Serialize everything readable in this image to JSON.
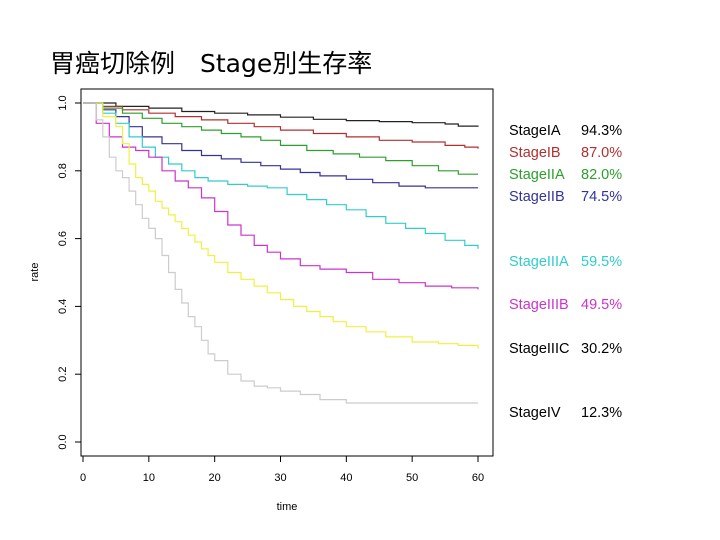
{
  "slide": {
    "title": "胃癌切除例　Stage別生存率"
  },
  "chart_data": {
    "type": "line",
    "title": "胃癌切除例　Stage別生存率",
    "xlabel": "time",
    "ylabel": "rate",
    "xlim": [
      0,
      60
    ],
    "ylim": [
      0.0,
      1.0
    ],
    "xticks": [
      "0",
      "10",
      "20",
      "30",
      "40",
      "50",
      "60"
    ],
    "yticks": [
      "0.0",
      "0.2",
      "0.4",
      "0.6",
      "0.8",
      "1.0"
    ],
    "grid": false,
    "legend_position": "right",
    "series": [
      {
        "name": "StageIA",
        "pct": "94.3%",
        "color": "#222222",
        "x": [
          0,
          5,
          10,
          15,
          20,
          25,
          30,
          35,
          40,
          45,
          50,
          55,
          57,
          60
        ],
        "y": [
          1.0,
          0.99,
          0.985,
          0.975,
          0.97,
          0.965,
          0.958,
          0.952,
          0.948,
          0.945,
          0.942,
          0.938,
          0.932,
          0.93
        ]
      },
      {
        "name": "StageIB",
        "pct": "87.0%",
        "color": "#b03030",
        "x": [
          0,
          3,
          6,
          10,
          14,
          18,
          22,
          26,
          30,
          35,
          40,
          45,
          50,
          55,
          58,
          60
        ],
        "y": [
          1.0,
          0.99,
          0.98,
          0.97,
          0.96,
          0.95,
          0.94,
          0.93,
          0.92,
          0.91,
          0.9,
          0.89,
          0.885,
          0.875,
          0.87,
          0.865
        ]
      },
      {
        "name": "StageIIA",
        "pct": "82.0%",
        "color": "#2ca02c",
        "x": [
          0,
          3,
          6,
          9,
          12,
          15,
          18,
          21,
          24,
          27,
          30,
          34,
          38,
          42,
          46,
          50,
          54,
          57,
          60
        ],
        "y": [
          1.0,
          0.985,
          0.97,
          0.955,
          0.94,
          0.93,
          0.92,
          0.91,
          0.9,
          0.89,
          0.875,
          0.86,
          0.85,
          0.84,
          0.83,
          0.815,
          0.8,
          0.79,
          0.79
        ]
      },
      {
        "name": "StageIIB",
        "pct": "74.5%",
        "color": "#333399",
        "x": [
          0,
          3,
          5,
          7,
          9,
          12,
          15,
          18,
          21,
          24,
          27,
          30,
          33,
          36,
          40,
          44,
          48,
          52,
          56,
          60
        ],
        "y": [
          1.0,
          0.98,
          0.96,
          0.93,
          0.9,
          0.88,
          0.86,
          0.845,
          0.835,
          0.825,
          0.815,
          0.805,
          0.795,
          0.785,
          0.775,
          0.765,
          0.755,
          0.75,
          0.75,
          0.75
        ]
      },
      {
        "name": "StageIIIA",
        "pct": "59.5%",
        "color": "#33cccc",
        "x": [
          0,
          3,
          5,
          7,
          9,
          11,
          13,
          15,
          17,
          19,
          22,
          25,
          28,
          31,
          34,
          37,
          40,
          43,
          46,
          49,
          52,
          55,
          58,
          60
        ],
        "y": [
          1.0,
          0.97,
          0.94,
          0.9,
          0.87,
          0.84,
          0.82,
          0.8,
          0.78,
          0.77,
          0.76,
          0.755,
          0.75,
          0.73,
          0.715,
          0.7,
          0.685,
          0.665,
          0.645,
          0.63,
          0.615,
          0.595,
          0.58,
          0.57
        ]
      },
      {
        "name": "StageIIIB",
        "pct": "49.5%",
        "color": "#cc33cc",
        "x": [
          0,
          2,
          4,
          6,
          8,
          10,
          12,
          14,
          16,
          18,
          20,
          22,
          24,
          26,
          28,
          30,
          33,
          36,
          40,
          44,
          48,
          52,
          56,
          60
        ],
        "y": [
          1.0,
          0.94,
          0.9,
          0.87,
          0.86,
          0.84,
          0.8,
          0.77,
          0.75,
          0.72,
          0.68,
          0.64,
          0.61,
          0.58,
          0.56,
          0.54,
          0.52,
          0.51,
          0.5,
          0.48,
          0.47,
          0.46,
          0.455,
          0.45
        ]
      },
      {
        "name": "StageIIIC",
        "pct": "30.2%",
        "color": "#f0f040",
        "x": [
          0,
          3,
          5,
          6,
          7,
          8,
          9,
          10,
          11,
          12,
          13,
          14,
          15,
          16,
          17,
          18,
          19,
          20,
          22,
          24,
          26,
          28,
          30,
          32,
          34,
          36,
          38,
          40,
          43,
          46,
          50,
          54,
          57,
          60
        ],
        "y": [
          1.0,
          0.96,
          0.93,
          0.88,
          0.82,
          0.78,
          0.76,
          0.74,
          0.71,
          0.69,
          0.67,
          0.65,
          0.63,
          0.61,
          0.59,
          0.57,
          0.55,
          0.53,
          0.5,
          0.48,
          0.46,
          0.44,
          0.42,
          0.4,
          0.385,
          0.37,
          0.355,
          0.34,
          0.325,
          0.31,
          0.295,
          0.29,
          0.285,
          0.275
        ]
      },
      {
        "name": "StageIV",
        "pct": "12.3%",
        "color": "#cccccc",
        "x": [
          0,
          2,
          3,
          4,
          5,
          6,
          7,
          8,
          9,
          10,
          11,
          12,
          13,
          14,
          15,
          16,
          17,
          18,
          19,
          20,
          22,
          24,
          26,
          28,
          30,
          33,
          36,
          40,
          45,
          50,
          55,
          60
        ],
        "y": [
          1.0,
          0.95,
          0.9,
          0.84,
          0.8,
          0.78,
          0.74,
          0.7,
          0.66,
          0.63,
          0.6,
          0.55,
          0.5,
          0.45,
          0.41,
          0.37,
          0.34,
          0.3,
          0.26,
          0.24,
          0.2,
          0.18,
          0.165,
          0.16,
          0.15,
          0.14,
          0.125,
          0.115,
          0.115,
          0.115,
          0.115,
          0.115
        ]
      }
    ]
  }
}
